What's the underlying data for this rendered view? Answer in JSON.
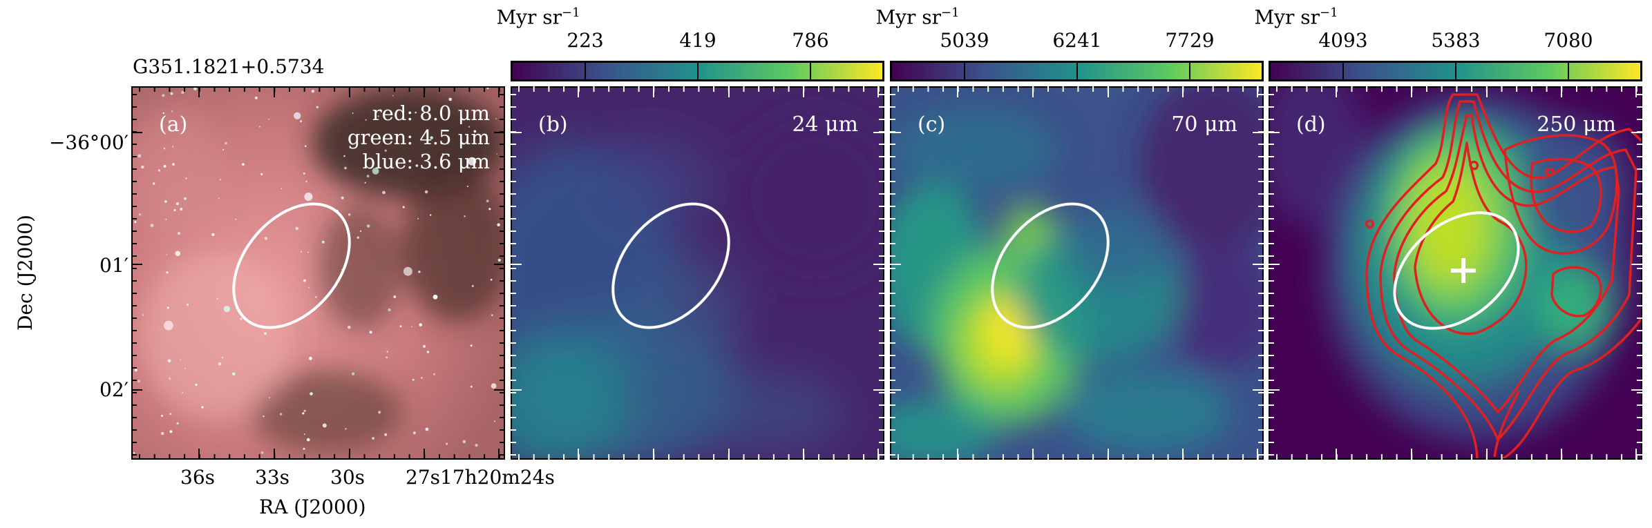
{
  "source_name": "G351.1821+0.5734",
  "colorbar_unit": "Myr sr",
  "colorbar_unit_sup": "−1",
  "panels": {
    "a": {
      "tag": "(a)",
      "legend": [
        "red: 8.0 μm",
        "green: 4.5 μm",
        "blue: 3.6 μm"
      ]
    },
    "b": {
      "tag": "(b)",
      "band": "24 μm",
      "cbar_ticks": [
        "223",
        "419",
        "786"
      ]
    },
    "c": {
      "tag": "(c)",
      "band": "70 μm",
      "cbar_ticks": [
        "5039",
        "6241",
        "7729"
      ]
    },
    "d": {
      "tag": "(d)",
      "band": "250 μm",
      "cbar_ticks": [
        "4093",
        "5383",
        "7080"
      ]
    }
  },
  "axes": {
    "xlabel": "RA (J2000)",
    "ylabel": "Dec (J2000)",
    "xticks": [
      "36s",
      "33s",
      "30s",
      "27s",
      "17h20m24s"
    ],
    "yticks": [
      "−36°00′",
      "01′",
      "02′"
    ]
  },
  "colors": {
    "ellipse": "#ffffff",
    "contour": "#e02020",
    "marker": "#ffffff",
    "viridis_low": "#440154",
    "viridis_high": "#fde725"
  }
}
